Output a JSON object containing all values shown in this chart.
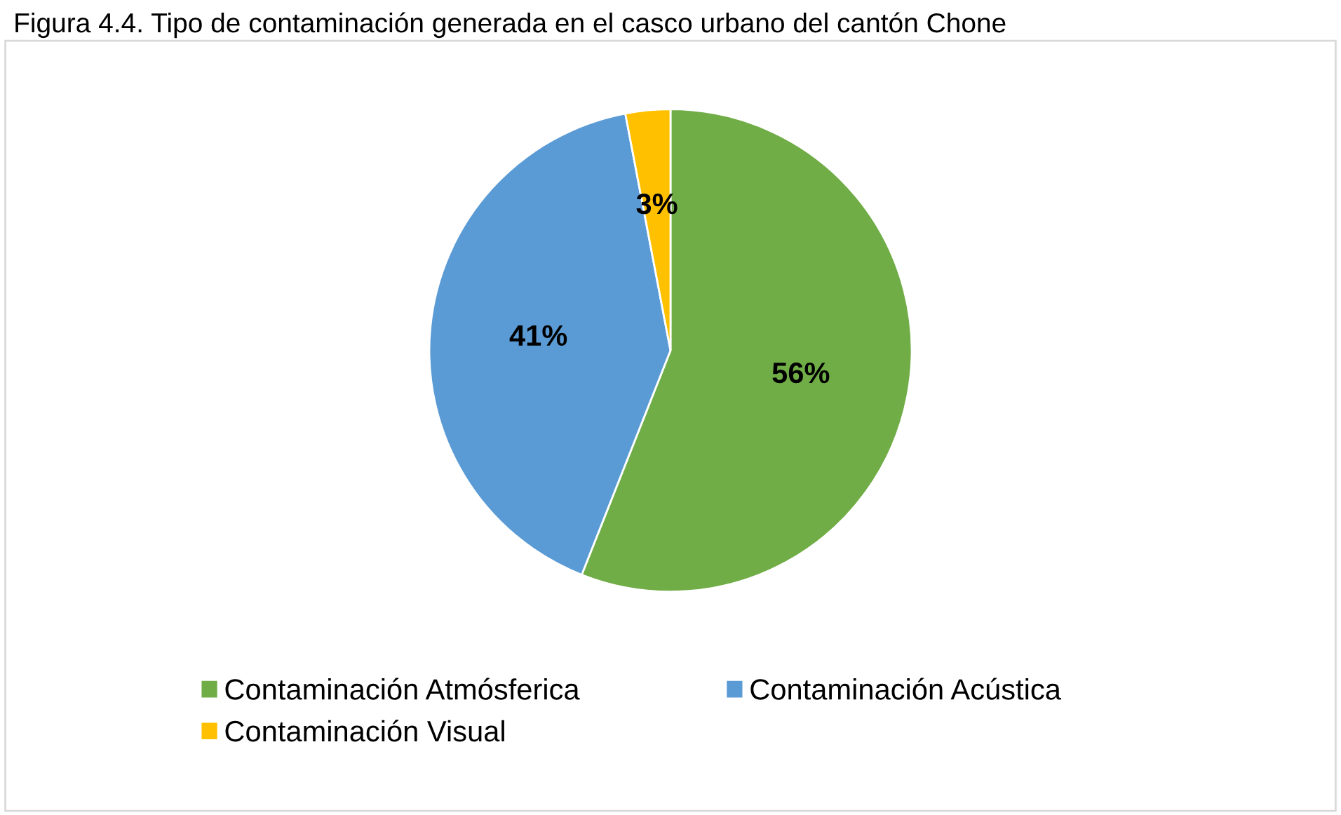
{
  "chart_data": {
    "type": "pie",
    "title": "Figura 4.4. Tipo de contaminación generada en el casco urbano del cantón Chone",
    "categories": [
      "Contaminación Atmósferica",
      "Contaminación Acústica",
      "Contaminación Visual"
    ],
    "values": [
      56,
      41,
      3
    ],
    "colors": [
      "#70ad47",
      "#5b9bd5",
      "#ffc000"
    ],
    "value_labels": [
      "56%",
      "41%",
      "3%"
    ],
    "legend": "bottom"
  }
}
